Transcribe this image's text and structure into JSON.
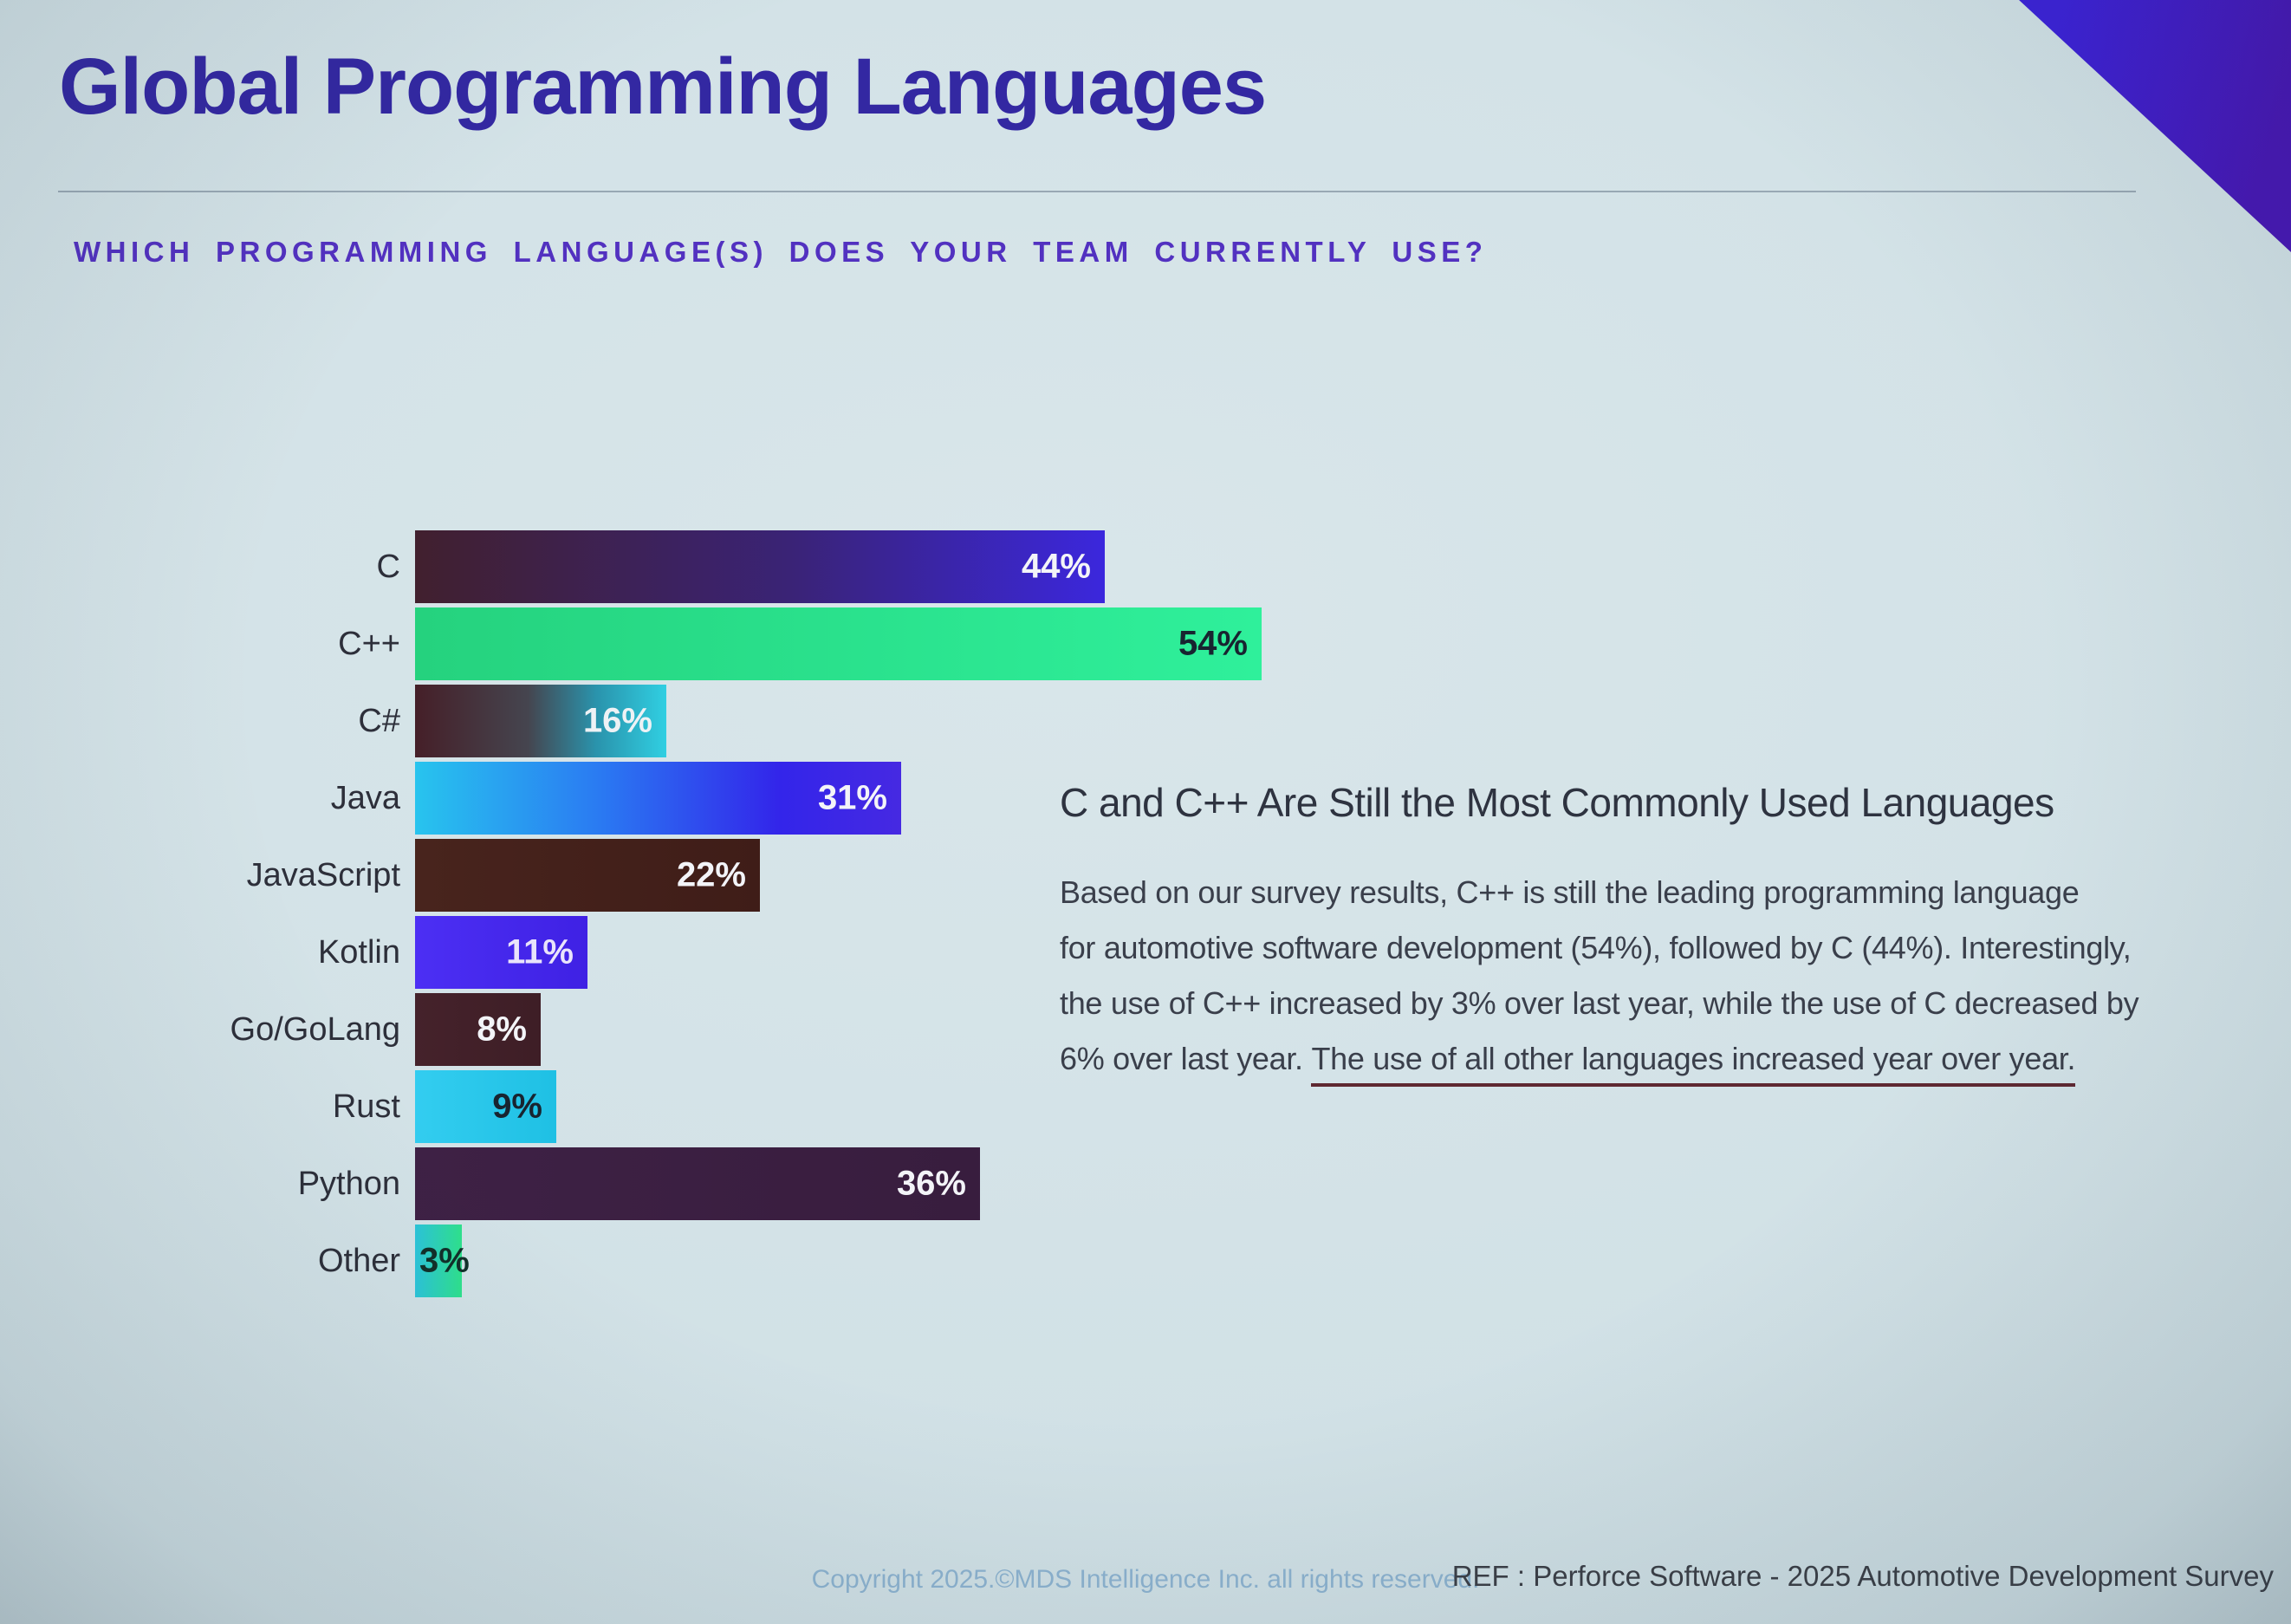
{
  "slide": {
    "title": "Global Programming Languages",
    "title_color": "#3328a2",
    "subtitle": "WHICH PROGRAMMING LANGUAGE(S) DOES YOUR TEAM CURRENTLY USE?",
    "subtitle_color": "#5231c0",
    "background_color": "#cfdfe5",
    "corner_accent_gradient": "linear-gradient(105deg, #3c22d8 15%, #4717b4 85%)"
  },
  "chart_data": {
    "type": "bar",
    "orientation": "horizontal",
    "title": "",
    "xlabel": "",
    "ylabel": "",
    "xlim": [
      0,
      60
    ],
    "grid": false,
    "legend": null,
    "categories": [
      "C",
      "C++",
      "C#",
      "Java",
      "JavaScript",
      "Kotlin",
      "Go/GoLang",
      "Rust",
      "Python",
      "Other"
    ],
    "values": [
      44,
      54,
      16,
      31,
      22,
      11,
      8,
      9,
      36,
      3
    ],
    "value_labels": [
      "44%",
      "54%",
      "16%",
      "31%",
      "22%",
      "11%",
      "8%",
      "9%",
      "36%",
      "3%"
    ],
    "bar_gradients": [
      "linear-gradient(90deg, #41202e 0%, #3a2377 55%, #3b27dd 100%)",
      "linear-gradient(90deg, #25d27e 0%, #2ff09b 100%)",
      "linear-gradient(90deg, #451f28 0%, #45454f 45%, #2a93ac 72%, #30cfe2 100%)",
      "linear-gradient(90deg, #28c4ee 0%, #2a7af2 38%, #3325ea 75%, #4629e2 100%)",
      "linear-gradient(90deg, #48241d 0%, #3f1d18 100%)",
      "linear-gradient(90deg, #4c2ff4 0%, #3f21e4 100%)",
      "linear-gradient(90deg, #45222b 0%, #3e1e26 100%)",
      "linear-gradient(90deg, #33cdf0 0%, #1fc0e4 100%)",
      "linear-gradient(90deg, #3e2145 0%, #381d3e 100%)",
      "linear-gradient(90deg, #2cc4da 0%, #2fe18c 100%)"
    ],
    "value_text_colors": [
      "#f3f4f8",
      "#182430",
      "#eef2f5",
      "#f3f4f8",
      "#f3f4f8",
      "#e9e4fb",
      "#f3f4f8",
      "#182430",
      "#f3f4f8",
      "#12302a"
    ],
    "value_label_positions": [
      "right",
      "right",
      "right",
      "right",
      "right",
      "right",
      "right",
      "right",
      "right",
      "left"
    ]
  },
  "insight": {
    "heading": "C and C++ Are Still the Most Commonly Used Languages",
    "body_lines": [
      "Based on our survey results, C++ is still the leading programming language",
      "for automotive software development (54%), followed by C (44%). Interestingly,",
      "the use of C++ increased by 3% over last year, while the use of C decreased by",
      "6% over last year. "
    ],
    "underlined_sentence": "The use of all other languages increased year over year.",
    "underline_color": "#5e2831"
  },
  "footer": {
    "copyright": "Copyright 2025.©MDS Intelligence Inc. all rights reserved.",
    "copyright_color": "#8cb2cf",
    "reference": "REF : Perforce Software - 2025 Automotive Development Survey",
    "reference_color": "#3b3f47"
  }
}
